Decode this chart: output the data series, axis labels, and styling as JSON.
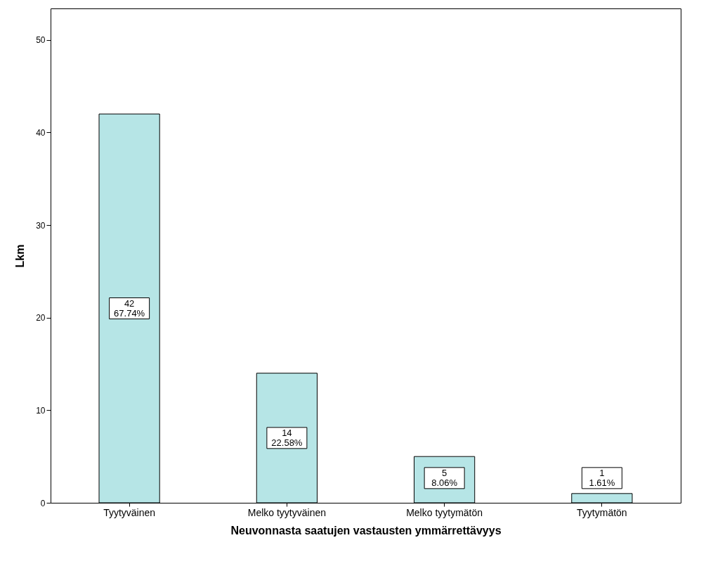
{
  "chart_data": {
    "type": "bar",
    "xlabel": "Neuvonnasta saatujen vastausten ymmärrettävyys",
    "ylabel": "Lkm",
    "categories": [
      "Tyytyväinen",
      "Melko tyytyväinen",
      "Melko tyytymätön",
      "Tyytymätön"
    ],
    "values": [
      42,
      14,
      5,
      1
    ],
    "value_labels": [
      "42\n67.74%",
      "14\n22.58%",
      "5\n8.06%",
      "1\n1.61%"
    ],
    "color": "#b6e5e6",
    "ylim": [
      0,
      53.4
    ],
    "yticks": [
      0,
      10,
      20,
      30,
      40,
      50
    ],
    "grid": false
  }
}
